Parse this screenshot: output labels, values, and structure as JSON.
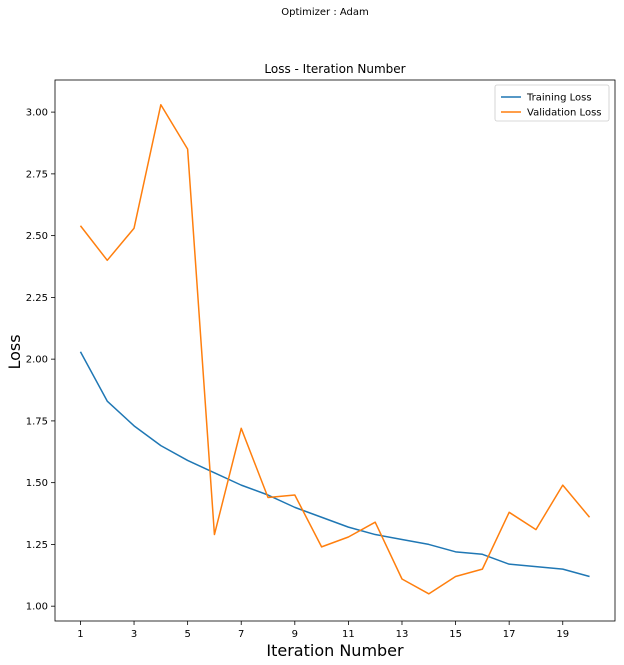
{
  "suptitle": "Optimizer : Adam",
  "chart_data": {
    "type": "line",
    "title": "Loss - Iteration Number",
    "xlabel": "Iteration Number",
    "ylabel": "Loss",
    "x": [
      1,
      2,
      3,
      4,
      5,
      6,
      7,
      8,
      9,
      10,
      11,
      12,
      13,
      14,
      15,
      16,
      17,
      18,
      19,
      20
    ],
    "xticks": [
      1,
      3,
      5,
      7,
      9,
      11,
      13,
      15,
      17,
      19
    ],
    "xtick_labels": [
      "1",
      "3",
      "5",
      "7",
      "9",
      "11",
      "13",
      "15",
      "17",
      "19"
    ],
    "yticks": [
      1.0,
      1.25,
      1.5,
      1.75,
      2.0,
      2.25,
      2.5,
      2.75,
      3.0
    ],
    "ytick_labels": [
      "1.00",
      "1.25",
      "1.50",
      "1.75",
      "2.00",
      "2.25",
      "2.50",
      "2.75",
      "3.00"
    ],
    "xlim": [
      0.05,
      20.95
    ],
    "ylim": [
      0.94,
      3.13
    ],
    "grid": false,
    "legend_position": "top-right",
    "series": [
      {
        "name": "Training Loss",
        "color": "#1f77b4",
        "values": [
          2.03,
          1.83,
          1.73,
          1.65,
          1.59,
          1.54,
          1.49,
          1.45,
          1.4,
          1.36,
          1.32,
          1.29,
          1.27,
          1.25,
          1.22,
          1.21,
          1.17,
          1.16,
          1.15,
          1.12
        ]
      },
      {
        "name": "Validation Loss",
        "color": "#ff7f0e",
        "values": [
          2.54,
          2.4,
          2.53,
          3.03,
          2.85,
          1.29,
          1.72,
          1.44,
          1.45,
          1.24,
          1.28,
          1.34,
          1.11,
          1.05,
          1.12,
          1.15,
          1.38,
          1.31,
          1.49,
          1.36
        ]
      }
    ]
  }
}
